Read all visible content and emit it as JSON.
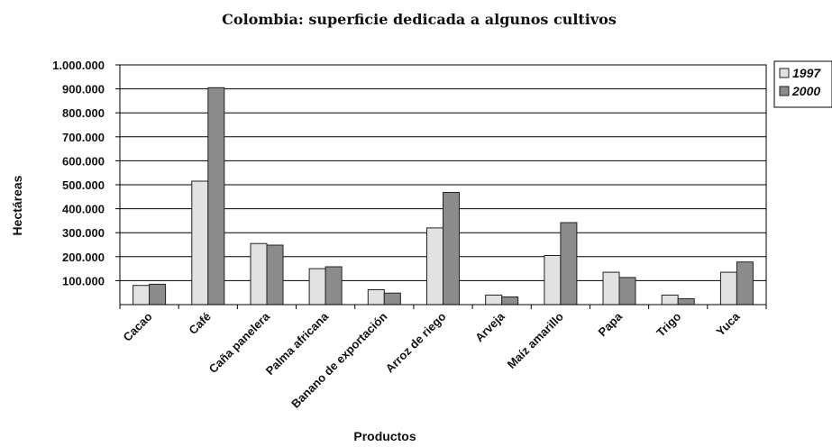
{
  "chart_data": {
    "type": "bar",
    "title": "Colombia: superficie dedicada a algunos cultivos",
    "xlabel": "Productos",
    "ylabel": "Hectáreas",
    "categories": [
      "Cacao",
      "Café",
      "Caña panelera",
      "Palma africana",
      "Banano de exportación",
      "Arroz de riego",
      "Arveja",
      "Maíz amarillo",
      "Papa",
      "Trigo",
      "Yuca"
    ],
    "series": [
      {
        "name": "1997",
        "color": "#e2e2e2",
        "values": [
          80000,
          515000,
          255000,
          150000,
          62000,
          320000,
          40000,
          205000,
          135000,
          40000,
          135000
        ]
      },
      {
        "name": "2000",
        "color": "#8c8c8c",
        "values": [
          85000,
          905000,
          248000,
          158000,
          48000,
          468000,
          32000,
          342000,
          113000,
          25000,
          178000
        ]
      }
    ],
    "yticks": [
      "100.000",
      "200.000",
      "300.000",
      "400.000",
      "500.000",
      "600.000",
      "700.000",
      "800.000",
      "900.000",
      "1.000.000"
    ],
    "ylim": [
      0,
      1000000
    ],
    "grid": true,
    "legend_position": "right"
  }
}
